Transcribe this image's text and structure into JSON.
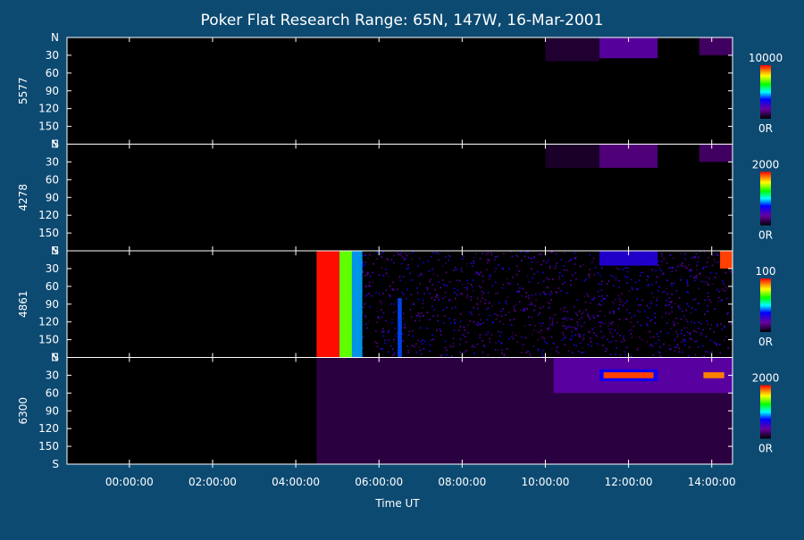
{
  "chart_data": {
    "type": "heatmap",
    "title": "Poker Flat Research Range: 65N, 147W, 16-Mar-2001",
    "xlabel": "Time UT",
    "x_ticks": [
      "00:00:00",
      "02:00:00",
      "04:00:00",
      "06:00:00",
      "08:00:00",
      "10:00:00",
      "12:00:00",
      "14:00:00"
    ],
    "x_range_hours": [
      -1.5,
      14.5
    ],
    "y_ticks": [
      "N",
      "30",
      "60",
      "90",
      "120",
      "150",
      "S"
    ],
    "y_range_degrees": [
      0,
      180
    ],
    "panels": [
      {
        "name": "5577",
        "colorbar": {
          "max_label": "10000",
          "min_label": "0R"
        },
        "features": [
          {
            "t_start": 11.3,
            "t_end": 12.7,
            "el_start": 0,
            "el_end": 35,
            "level": 0.2
          },
          {
            "t_start": 10.0,
            "t_end": 11.3,
            "el_start": 0,
            "el_end": 40,
            "level": 0.06
          },
          {
            "t_start": 13.7,
            "t_end": 14.5,
            "el_start": 0,
            "el_end": 30,
            "level": 0.12
          }
        ]
      },
      {
        "name": "4278",
        "colorbar": {
          "max_label": "2000",
          "min_label": "0R"
        },
        "features": [
          {
            "t_start": 11.3,
            "t_end": 12.7,
            "el_start": 0,
            "el_end": 40,
            "level": 0.15
          },
          {
            "t_start": 10.0,
            "t_end": 11.3,
            "el_start": 0,
            "el_end": 40,
            "level": 0.05
          },
          {
            "t_start": 13.7,
            "t_end": 14.5,
            "el_start": 0,
            "el_end": 30,
            "level": 0.12
          }
        ]
      },
      {
        "name": "4861",
        "colorbar": {
          "max_label": "100",
          "min_label": "0R"
        },
        "features": [
          {
            "t_start": 4.5,
            "t_end": 14.5,
            "el_start": 0,
            "el_end": 180,
            "level": 0.25,
            "noise": true
          },
          {
            "t_start": 4.5,
            "t_end": 5.05,
            "el_start": 0,
            "el_end": 180,
            "level": 0.99
          },
          {
            "t_start": 5.05,
            "t_end": 5.35,
            "el_start": 0,
            "el_end": 180,
            "level": 0.7
          },
          {
            "t_start": 5.35,
            "t_end": 5.6,
            "el_start": 0,
            "el_end": 180,
            "level": 0.45
          },
          {
            "t_start": 6.45,
            "t_end": 6.55,
            "el_start": 80,
            "el_end": 180,
            "level": 0.4
          },
          {
            "t_start": 11.3,
            "t_end": 12.7,
            "el_start": 0,
            "el_end": 25,
            "level": 0.3
          },
          {
            "t_start": 14.2,
            "t_end": 14.5,
            "el_start": 0,
            "el_end": 30,
            "level": 0.95
          }
        ]
      },
      {
        "name": "6300",
        "colorbar": {
          "max_label": "2000",
          "min_label": "0R"
        },
        "features": [
          {
            "t_start": 4.5,
            "t_end": 14.5,
            "el_start": 0,
            "el_end": 180,
            "level": 0.08
          },
          {
            "t_start": 10.2,
            "t_end": 14.5,
            "el_start": 0,
            "el_end": 60,
            "level": 0.2
          },
          {
            "t_start": 11.3,
            "t_end": 12.7,
            "el_start": 20,
            "el_end": 40,
            "level": 0.35
          },
          {
            "t_start": 11.4,
            "t_end": 12.6,
            "el_start": 25,
            "el_end": 35,
            "level": 0.95
          },
          {
            "t_start": 13.8,
            "t_end": 14.3,
            "el_start": 25,
            "el_end": 35,
            "level": 0.9
          }
        ]
      }
    ]
  }
}
